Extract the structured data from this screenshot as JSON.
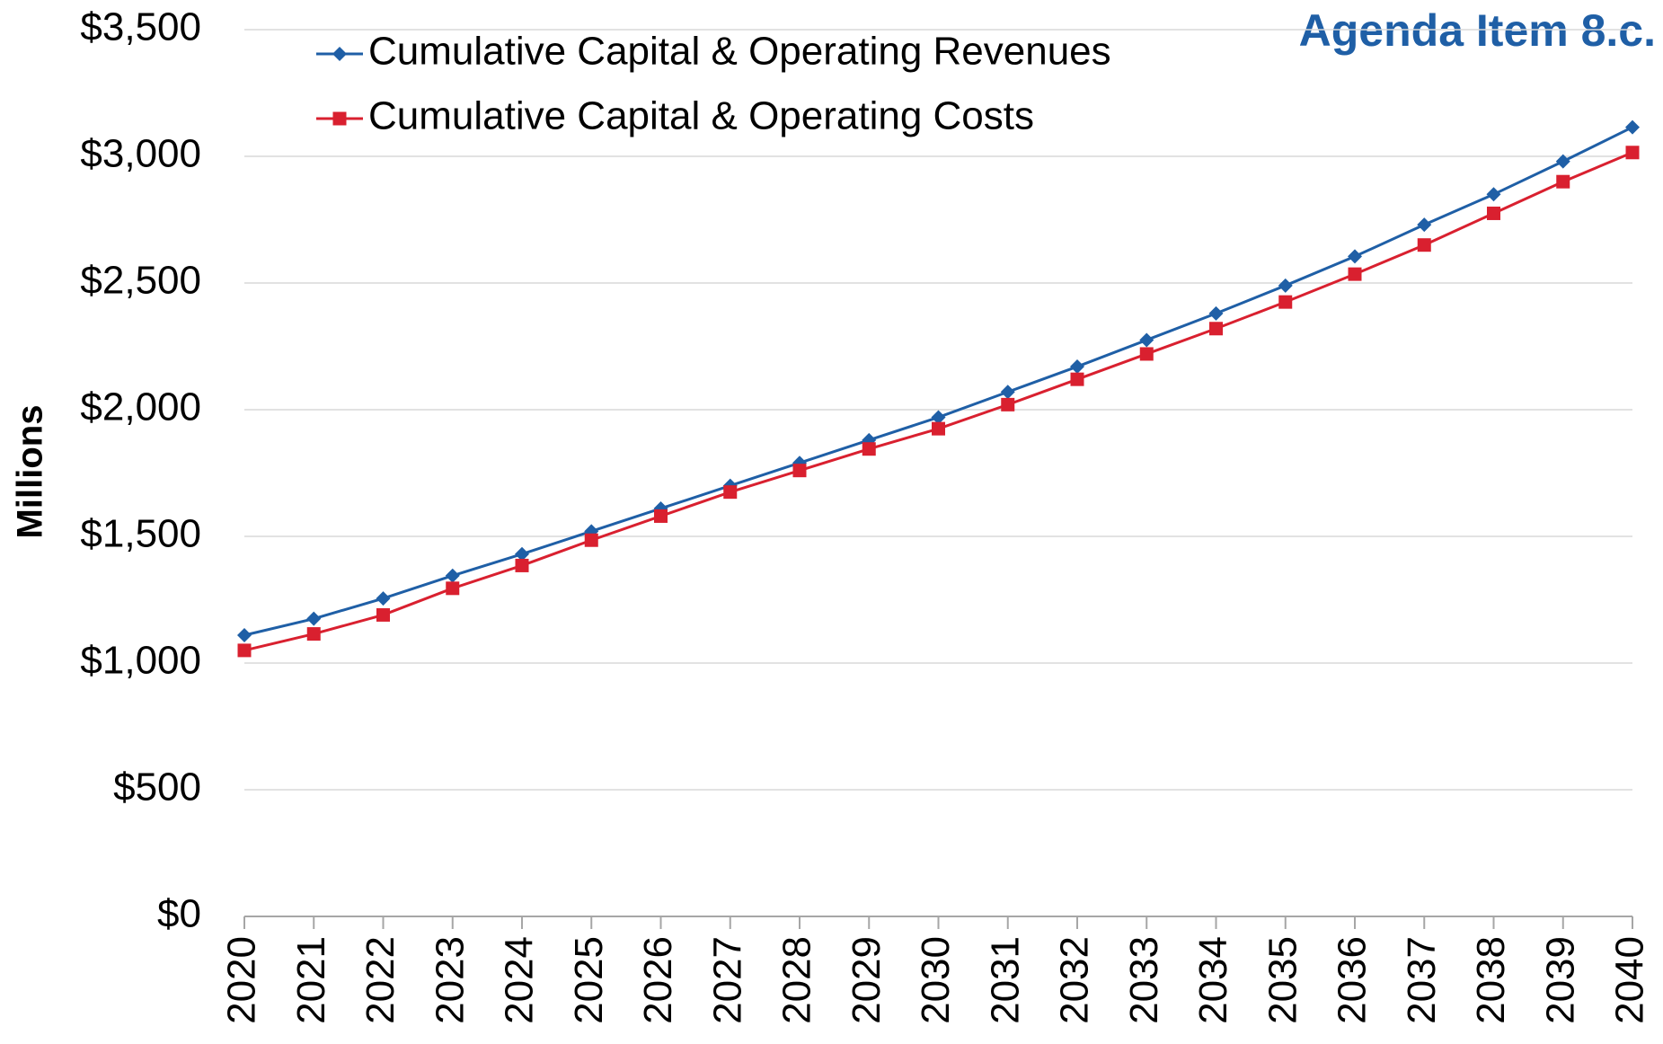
{
  "chart_data": {
    "type": "line",
    "annotation": "Agenda Item 8.c.",
    "y_label": "Millions",
    "categories": [
      "2020",
      "2021",
      "2022",
      "2023",
      "2024",
      "2025",
      "2026",
      "2027",
      "2028",
      "2029",
      "2030",
      "2031",
      "2032",
      "2033",
      "2034",
      "2035",
      "2036",
      "2037",
      "2038",
      "2039",
      "2040"
    ],
    "series": [
      {
        "name": "Cumulative Capital & Operating Revenues",
        "color": "#1f5fa6",
        "marker": "diamond",
        "values": [
          1110,
          1175,
          1255,
          1345,
          1430,
          1520,
          1610,
          1700,
          1790,
          1880,
          1970,
          2070,
          2170,
          2275,
          2380,
          2490,
          2605,
          2730,
          2850,
          2980,
          3115
        ]
      },
      {
        "name": "Cumulative Capital & Operating Costs",
        "color": "#d9202f",
        "marker": "square",
        "values": [
          1050,
          1115,
          1190,
          1295,
          1385,
          1485,
          1580,
          1675,
          1760,
          1845,
          1925,
          2020,
          2120,
          2220,
          2320,
          2425,
          2535,
          2650,
          2775,
          2900,
          3015
        ]
      }
    ],
    "ylim": [
      0,
      3500
    ],
    "yticks": [
      {
        "value": 0,
        "label": "$0"
      },
      {
        "value": 500,
        "label": "$500"
      },
      {
        "value": 1000,
        "label": "$1,000"
      },
      {
        "value": 1500,
        "label": "$1,500"
      },
      {
        "value": 2000,
        "label": "$2,000"
      },
      {
        "value": 2500,
        "label": "$2,500"
      },
      {
        "value": 3000,
        "label": "$3,000"
      },
      {
        "value": 3500,
        "label": "$3,500"
      }
    ],
    "grid": true,
    "legend": "top-left"
  }
}
